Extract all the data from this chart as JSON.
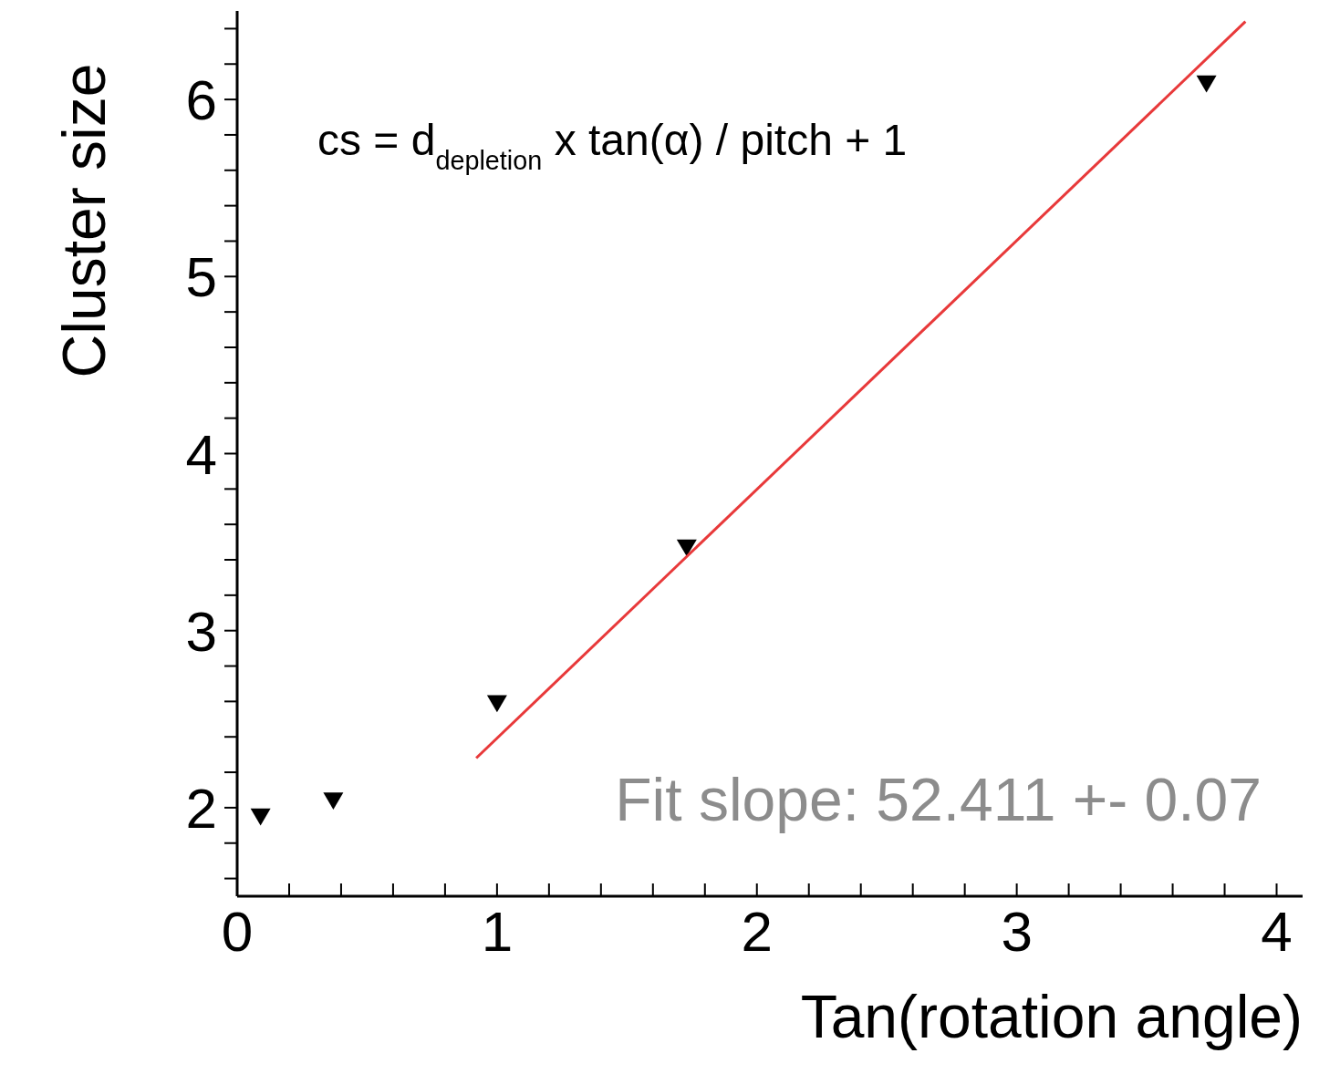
{
  "chart_data": {
    "type": "scatter",
    "xlabel": "Tan(rotation angle)",
    "ylabel": "Cluster size",
    "xlim": [
      0,
      4.1
    ],
    "ylim": [
      1.5,
      6.5
    ],
    "xticks": [
      0,
      {
        "value": 0.2,
        "label": null
      },
      {
        "value": 0.4,
        "label": null
      },
      {
        "value": 0.6,
        "label": null
      },
      {
        "value": 0.8,
        "label": null
      },
      1,
      {
        "value": 1.2,
        "label": null
      },
      {
        "value": 1.4,
        "label": null
      },
      {
        "value": 1.6,
        "label": null
      },
      {
        "value": 1.8,
        "label": null
      },
      2,
      {
        "value": 2.2,
        "label": null
      },
      {
        "value": 2.4,
        "label": null
      },
      {
        "value": 2.6,
        "label": null
      },
      {
        "value": 2.8,
        "label": null
      },
      3,
      {
        "value": 3.2,
        "label": null
      },
      {
        "value": 3.4,
        "label": null
      },
      {
        "value": 3.6,
        "label": null
      },
      {
        "value": 3.8,
        "label": null
      },
      4
    ],
    "yticks": [
      {
        "value": 1.6,
        "label": null
      },
      {
        "value": 1.8,
        "label": null
      },
      2,
      {
        "value": 2.2,
        "label": null
      },
      {
        "value": 2.4,
        "label": null
      },
      {
        "value": 2.6,
        "label": null
      },
      {
        "value": 2.8,
        "label": null
      },
      3,
      {
        "value": 3.2,
        "label": null
      },
      {
        "value": 3.4,
        "label": null
      },
      {
        "value": 3.6,
        "label": null
      },
      {
        "value": 3.8,
        "label": null
      },
      4,
      {
        "value": 4.2,
        "label": null
      },
      {
        "value": 4.4,
        "label": null
      },
      {
        "value": 4.6,
        "label": null
      },
      {
        "value": 4.8,
        "label": null
      },
      5,
      {
        "value": 5.2,
        "label": null
      },
      {
        "value": 5.4,
        "label": null
      },
      {
        "value": 5.6,
        "label": null
      },
      {
        "value": 5.8,
        "label": null
      },
      6,
      {
        "value": 6.2,
        "label": null
      },
      {
        "value": 6.4,
        "label": null
      }
    ],
    "grid": false,
    "legend": false,
    "marker": "triangle",
    "series": [
      {
        "type": "scatter",
        "color": "#000000",
        "x": [
          0.09,
          0.37,
          1.0,
          1.73,
          3.73
        ],
        "values": [
          1.95,
          2.04,
          2.59,
          3.47,
          6.09
        ]
      },
      {
        "type": "line",
        "color": "#e8393a",
        "marker": "none",
        "line_style": "solid",
        "x": [
          0.92,
          3.88
        ],
        "values": [
          2.28,
          6.44
        ]
      }
    ],
    "annotations": [
      "cs = d$_{depletion}$ x tan(α) / pitch + 1",
      "Fit slope: 52.411 +- 0.07"
    ]
  }
}
